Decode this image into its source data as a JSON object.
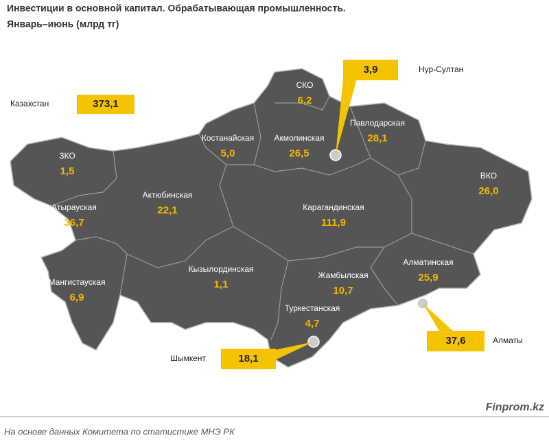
{
  "header": {
    "title": "Инвестиции в основной капитал. Обрабатывающая промышленность.",
    "subtitle": "Январь–июнь (млрд тг)"
  },
  "total": {
    "label": "Казахстан",
    "value": "373,1"
  },
  "regions": [
    {
      "name": "СКО",
      "value": "6,2"
    },
    {
      "name": "Костанайская",
      "value": "5,0"
    },
    {
      "name": "Акмолинская",
      "value": "26,5"
    },
    {
      "name": "Павлодарская",
      "value": "28,1"
    },
    {
      "name": "ЗКО",
      "value": "1,5"
    },
    {
      "name": "Атырауская",
      "value": "36,7"
    },
    {
      "name": "Актюбинская",
      "value": "22,1"
    },
    {
      "name": "Карагандинская",
      "value": "111,9"
    },
    {
      "name": "ВКО",
      "value": "26,0"
    },
    {
      "name": "Мангистауская",
      "value": "6,9"
    },
    {
      "name": "Кызылординская",
      "value": "1,1"
    },
    {
      "name": "Жамбылская",
      "value": "10,7"
    },
    {
      "name": "Алматинская",
      "value": "25,9"
    },
    {
      "name": "Туркестанская",
      "value": "4,7"
    }
  ],
  "cities": [
    {
      "name": "Нур-Султан",
      "value": "3,9"
    },
    {
      "name": "Алматы",
      "value": "37,6"
    },
    {
      "name": "Шымкент",
      "value": "18,1"
    }
  ],
  "footer": {
    "source": "На основе данных Комитета по статистике МНЭ РК",
    "brand": "Finprom.kz"
  }
}
